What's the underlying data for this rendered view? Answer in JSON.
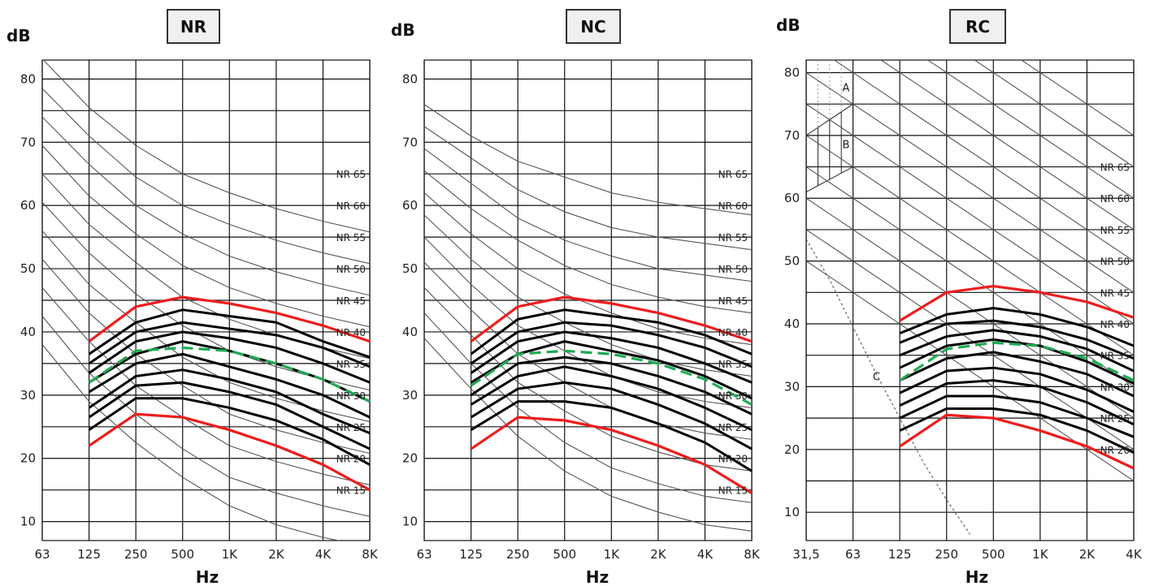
{
  "chart_data": [
    {
      "type": "line",
      "title": "NR",
      "ylabel": "dB",
      "xlabel": "Hz",
      "ylim": [
        7,
        83
      ],
      "y_ticks": [
        "80",
        "70",
        "60",
        "50",
        "40",
        "30",
        "20",
        "10"
      ],
      "x_ticks": [
        "63",
        "125",
        "250",
        "500",
        "1K",
        "2K",
        "4K",
        "8K"
      ],
      "grid": true,
      "curve_labels": [
        "NR 65",
        "NR 60",
        "NR 55",
        "NR 50",
        "NR 45",
        "NR 40",
        "NR 35",
        "NR 30",
        "NR 25",
        "NR 20",
        "NR 15"
      ],
      "curve_label_levels": [
        65,
        60,
        55,
        50,
        45,
        40,
        35,
        30,
        25,
        20,
        15
      ],
      "reference_curves": [
        {
          "values": [
            83.2,
            75.5,
            69.5,
            65,
            62,
            59.5,
            57.5,
            55.8
          ]
        },
        {
          "values": [
            78.5,
            71,
            64.5,
            60,
            57,
            54.5,
            52.5,
            50.8
          ]
        },
        {
          "values": [
            74,
            66.5,
            60,
            55.5,
            52,
            49.5,
            47.5,
            45.8
          ]
        },
        {
          "values": [
            69.5,
            61.5,
            55.5,
            50.5,
            47,
            44.5,
            42.5,
            40.8
          ]
        },
        {
          "values": [
            65,
            57,
            51,
            45.5,
            42,
            39.5,
            37.5,
            35.8
          ]
        },
        {
          "values": [
            60.5,
            52.5,
            46,
            41,
            37,
            34.5,
            32.5,
            30.8
          ]
        },
        {
          "values": [
            56,
            47.5,
            41.5,
            36,
            32,
            29.5,
            27.5,
            25.8
          ]
        },
        {
          "values": [
            51.5,
            43,
            36.5,
            31.5,
            27,
            24.5,
            22.5,
            20.8
          ]
        },
        {
          "values": [
            47,
            38.5,
            31.5,
            26.5,
            22,
            19.5,
            17.5,
            15.8
          ]
        },
        {
          "values": [
            42.5,
            33.5,
            27,
            21.5,
            17,
            14.5,
            12.5,
            10.8
          ]
        },
        {
          "values": [
            38,
            29,
            22.5,
            17,
            12.5,
            9.5,
            7.5,
            6
          ]
        }
      ],
      "band_x": [
        "125",
        "250",
        "500",
        "1K",
        "2K",
        "4K",
        "8K"
      ],
      "band_curves": [
        {
          "values": [
            36.5,
            41.5,
            43.5,
            42.5,
            41.5,
            38.5,
            36
          ]
        },
        {
          "values": [
            35,
            40,
            41.5,
            40.5,
            39.5,
            37.5,
            34.5
          ]
        },
        {
          "values": [
            33.5,
            38.5,
            40,
            39,
            37.5,
            35,
            32
          ]
        },
        {
          "values": [
            32,
            36.5,
            38.5,
            37,
            35,
            32.5,
            29
          ]
        },
        {
          "values": [
            30.5,
            35,
            36.5,
            34.5,
            32.5,
            30,
            26.5
          ]
        },
        {
          "values": [
            28,
            33,
            34,
            32.5,
            30.5,
            27,
            24
          ]
        },
        {
          "values": [
            26.5,
            31.5,
            32,
            30.5,
            28.5,
            25,
            21.5
          ]
        },
        {
          "values": [
            24.5,
            29.5,
            29.5,
            28,
            26,
            23,
            19
          ]
        }
      ],
      "upper_limit": {
        "values": [
          38.5,
          44,
          45.5,
          44.5,
          43,
          41,
          38.5
        ]
      },
      "lower_limit": {
        "values": [
          22,
          27,
          26.5,
          24.5,
          22,
          19,
          15
        ]
      },
      "target": {
        "values": [
          32,
          37,
          37.5,
          37,
          35,
          32.5,
          29
        ]
      }
    },
    {
      "type": "line",
      "title": "NC",
      "ylabel": "dB",
      "xlabel": "Hz",
      "ylim": [
        7,
        83
      ],
      "y_ticks": [
        "80",
        "70",
        "60",
        "50",
        "40",
        "30",
        "20",
        "10"
      ],
      "x_ticks": [
        "63",
        "125",
        "250",
        "500",
        "1K",
        "2K",
        "4K",
        "8K"
      ],
      "grid": true,
      "curve_labels": [
        "NR 65",
        "NR 60",
        "NR 55",
        "NR 50",
        "NR 45",
        "NR 40",
        "NR 35",
        "NR 30",
        "NR 25",
        "NR 20",
        "NR 15"
      ],
      "curve_label_levels": [
        65,
        60,
        55,
        50,
        45,
        40,
        35,
        30,
        25,
        20,
        15
      ],
      "reference_curves": [
        {
          "values": [
            76,
            71,
            67,
            64.5,
            62,
            60.5,
            59.5,
            58.5
          ]
        },
        {
          "values": [
            72.5,
            67.5,
            62.5,
            59,
            56.5,
            55,
            54,
            53
          ]
        },
        {
          "values": [
            69,
            63.5,
            58,
            54.5,
            52,
            50,
            49,
            48
          ]
        },
        {
          "values": [
            65.5,
            59.5,
            54.5,
            50.5,
            47.5,
            45.5,
            44,
            43
          ]
        },
        {
          "values": [
            62,
            55.5,
            50,
            46,
            43,
            40.5,
            39,
            38
          ]
        },
        {
          "values": [
            58.5,
            51.5,
            45.5,
            41.5,
            38,
            35.5,
            34,
            33
          ]
        },
        {
          "values": [
            55,
            47.5,
            41,
            37,
            33,
            30.5,
            29,
            28
          ]
        },
        {
          "values": [
            51,
            43.5,
            36.5,
            32,
            28,
            25.5,
            24,
            23
          ]
        },
        {
          "values": [
            47,
            39.5,
            32,
            27.5,
            23.5,
            21,
            19,
            18
          ]
        },
        {
          "values": [
            43,
            35,
            28,
            22.5,
            18.5,
            16,
            14,
            13
          ]
        },
        {
          "values": [
            39,
            31,
            23.5,
            18,
            14,
            11.5,
            9.5,
            8.5
          ]
        }
      ],
      "band_x": [
        "125",
        "250",
        "500",
        "1K",
        "2K",
        "4K",
        "8K"
      ],
      "band_curves": [
        {
          "values": [
            36.5,
            42,
            43.5,
            42.5,
            41.5,
            39.5,
            36.5
          ]
        },
        {
          "values": [
            35,
            40,
            41.5,
            41,
            39.5,
            37.5,
            34.5
          ]
        },
        {
          "values": [
            33.5,
            38.5,
            40,
            39,
            37.5,
            35,
            32
          ]
        },
        {
          "values": [
            32,
            36.5,
            38.5,
            37,
            35.5,
            33,
            29.5
          ]
        },
        {
          "values": [
            30,
            35,
            36,
            35,
            33,
            30.5,
            27
          ]
        },
        {
          "values": [
            28.5,
            33,
            34.5,
            33,
            31,
            28,
            24.5
          ]
        },
        {
          "values": [
            26.5,
            31,
            32,
            31,
            28.5,
            25.5,
            21.5
          ]
        },
        {
          "values": [
            24.5,
            29,
            29,
            28,
            25.5,
            22.5,
            18
          ]
        }
      ],
      "upper_limit": {
        "values": [
          38.5,
          44,
          45.5,
          44.5,
          43,
          41,
          38.5
        ]
      },
      "lower_limit": {
        "values": [
          21.5,
          26.5,
          26,
          24.5,
          22,
          19,
          14.5
        ]
      },
      "target": {
        "values": [
          31.5,
          36.5,
          37,
          36.5,
          35,
          32.5,
          28.5
        ]
      }
    },
    {
      "type": "line",
      "title": "RC",
      "ylabel": "dB",
      "xlabel": "Hz",
      "ylim": [
        5.5,
        82
      ],
      "y_ticks": [
        "80",
        "70",
        "60",
        "50",
        "40",
        "30",
        "20",
        "10"
      ],
      "x_ticks": [
        "31,5",
        "63",
        "125",
        "250",
        "500",
        "1K",
        "2K",
        "4K"
      ],
      "grid": true,
      "curve_labels": [
        "NR 65",
        "NR 60",
        "NR 55",
        "NR 50",
        "NR 45",
        "NR 40",
        "NR 35",
        "NR 30",
        "NR 25",
        "NR 20"
      ],
      "curve_label_levels": [
        65,
        60,
        55,
        50,
        45,
        40,
        35,
        30,
        25,
        20
      ],
      "reference_curves": [
        {
          "values": [
            105,
            100,
            95,
            90,
            85,
            80,
            75,
            70
          ]
        },
        {
          "values": [
            100,
            95,
            90,
            85,
            80,
            75,
            70,
            65
          ]
        },
        {
          "values": [
            95,
            90,
            85,
            80,
            75,
            70,
            65,
            60
          ]
        },
        {
          "values": [
            90,
            85,
            80,
            75,
            70,
            65,
            60,
            55
          ]
        },
        {
          "values": [
            85,
            80,
            75,
            70,
            65,
            60,
            55,
            50
          ]
        },
        {
          "values": [
            80,
            75,
            70,
            65,
            60,
            55,
            50,
            45
          ]
        },
        {
          "values": [
            75,
            70,
            65,
            60,
            55,
            50,
            45,
            40
          ]
        },
        {
          "values": [
            70,
            65,
            60,
            55,
            50,
            45,
            40,
            35
          ]
        },
        {
          "values": [
            65,
            60,
            55,
            50,
            45,
            40,
            35,
            30
          ]
        },
        {
          "values": [
            60,
            55,
            50,
            45,
            40,
            35,
            30,
            25
          ]
        },
        {
          "values": [
            55,
            50,
            45,
            40,
            35,
            30,
            25,
            20
          ]
        },
        {
          "values": [
            50,
            45,
            40,
            35,
            30,
            25,
            20,
            15
          ]
        }
      ],
      "band_x": [
        "125",
        "250",
        "500",
        "1K",
        "2K",
        "4K"
      ],
      "band_curves": [
        {
          "values": [
            38.5,
            41.5,
            42.5,
            41.5,
            39.5,
            36.5
          ]
        },
        {
          "values": [
            37,
            40,
            40.5,
            39.5,
            37.5,
            34.5
          ]
        },
        {
          "values": [
            35,
            38,
            39,
            38,
            36,
            32.5
          ]
        },
        {
          "values": [
            33,
            36.5,
            37.5,
            36.5,
            34,
            30.5
          ]
        },
        {
          "values": [
            31,
            34.5,
            35.5,
            34,
            32,
            28.5
          ]
        },
        {
          "values": [
            29,
            32.5,
            33,
            32,
            29.5,
            26
          ]
        },
        {
          "values": [
            27,
            30.5,
            31,
            30,
            27.5,
            24
          ]
        },
        {
          "values": [
            25,
            28.5,
            28.5,
            27.5,
            25,
            22
          ]
        },
        {
          "values": [
            23,
            26.5,
            26.5,
            25.5,
            23,
            19.5
          ]
        }
      ],
      "upper_limit": {
        "values": [
          40.5,
          45,
          46,
          45,
          43.5,
          41
        ]
      },
      "lower_limit": {
        "values": [
          20.5,
          25.5,
          25,
          23,
          20.5,
          17
        ]
      },
      "target": {
        "values": [
          31,
          36,
          37,
          36.5,
          34.5,
          31
        ]
      },
      "annotations": [
        "A",
        "B",
        "C"
      ],
      "zone_c": {
        "x": [
          0,
          0.5,
          1,
          1.5,
          2,
          2.5,
          3,
          3.5
        ],
        "y": [
          53.5,
          47,
          39.5,
          32,
          25,
          18,
          12,
          6.5
        ]
      },
      "zone_b": {
        "upper_y": [
          70,
          75
        ],
        "lower_y": [
          61,
          65
        ],
        "x": [
          0,
          1
        ]
      }
    }
  ]
}
